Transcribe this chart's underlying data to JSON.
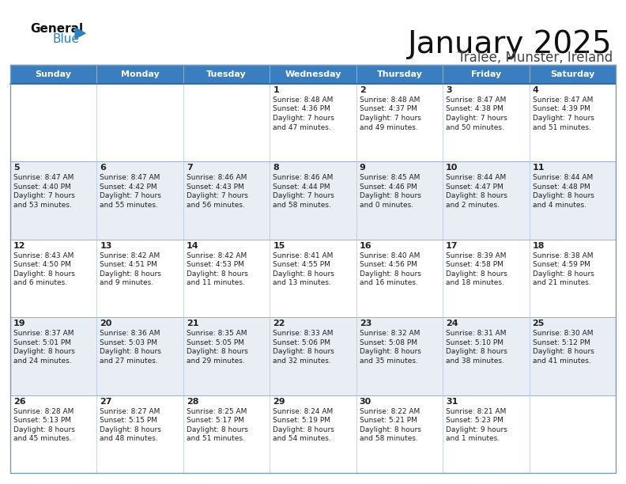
{
  "title": "January 2025",
  "subtitle": "Tralee, Munster, Ireland",
  "header_bg": "#3a7ebf",
  "header_text": "#FFFFFF",
  "day_names": [
    "Sunday",
    "Monday",
    "Tuesday",
    "Wednesday",
    "Thursday",
    "Friday",
    "Saturday"
  ],
  "alt_row_bg": "#E8EEF4",
  "normal_row_bg": "#FFFFFF",
  "cell_text_color": "#222222",
  "date_color": "#222222",
  "calendar": [
    [
      {
        "day": "",
        "sunrise": "",
        "sunset": "",
        "daylight_h": "",
        "daylight_m": ""
      },
      {
        "day": "",
        "sunrise": "",
        "sunset": "",
        "daylight_h": "",
        "daylight_m": ""
      },
      {
        "day": "",
        "sunrise": "",
        "sunset": "",
        "daylight_h": "",
        "daylight_m": ""
      },
      {
        "day": "1",
        "sunrise": "8:48 AM",
        "sunset": "4:36 PM",
        "daylight_h": "7",
        "daylight_m": "47"
      },
      {
        "day": "2",
        "sunrise": "8:48 AM",
        "sunset": "4:37 PM",
        "daylight_h": "7",
        "daylight_m": "49"
      },
      {
        "day": "3",
        "sunrise": "8:47 AM",
        "sunset": "4:38 PM",
        "daylight_h": "7",
        "daylight_m": "50"
      },
      {
        "day": "4",
        "sunrise": "8:47 AM",
        "sunset": "4:39 PM",
        "daylight_h": "7",
        "daylight_m": "51"
      }
    ],
    [
      {
        "day": "5",
        "sunrise": "8:47 AM",
        "sunset": "4:40 PM",
        "daylight_h": "7",
        "daylight_m": "53"
      },
      {
        "day": "6",
        "sunrise": "8:47 AM",
        "sunset": "4:42 PM",
        "daylight_h": "7",
        "daylight_m": "55"
      },
      {
        "day": "7",
        "sunrise": "8:46 AM",
        "sunset": "4:43 PM",
        "daylight_h": "7",
        "daylight_m": "56"
      },
      {
        "day": "8",
        "sunrise": "8:46 AM",
        "sunset": "4:44 PM",
        "daylight_h": "7",
        "daylight_m": "58"
      },
      {
        "day": "9",
        "sunrise": "8:45 AM",
        "sunset": "4:46 PM",
        "daylight_h": "8",
        "daylight_m": "0"
      },
      {
        "day": "10",
        "sunrise": "8:44 AM",
        "sunset": "4:47 PM",
        "daylight_h": "8",
        "daylight_m": "2"
      },
      {
        "day": "11",
        "sunrise": "8:44 AM",
        "sunset": "4:48 PM",
        "daylight_h": "8",
        "daylight_m": "4"
      }
    ],
    [
      {
        "day": "12",
        "sunrise": "8:43 AM",
        "sunset": "4:50 PM",
        "daylight_h": "8",
        "daylight_m": "6"
      },
      {
        "day": "13",
        "sunrise": "8:42 AM",
        "sunset": "4:51 PM",
        "daylight_h": "8",
        "daylight_m": "9"
      },
      {
        "day": "14",
        "sunrise": "8:42 AM",
        "sunset": "4:53 PM",
        "daylight_h": "8",
        "daylight_m": "11"
      },
      {
        "day": "15",
        "sunrise": "8:41 AM",
        "sunset": "4:55 PM",
        "daylight_h": "8",
        "daylight_m": "13"
      },
      {
        "day": "16",
        "sunrise": "8:40 AM",
        "sunset": "4:56 PM",
        "daylight_h": "8",
        "daylight_m": "16"
      },
      {
        "day": "17",
        "sunrise": "8:39 AM",
        "sunset": "4:58 PM",
        "daylight_h": "8",
        "daylight_m": "18"
      },
      {
        "day": "18",
        "sunrise": "8:38 AM",
        "sunset": "4:59 PM",
        "daylight_h": "8",
        "daylight_m": "21"
      }
    ],
    [
      {
        "day": "19",
        "sunrise": "8:37 AM",
        "sunset": "5:01 PM",
        "daylight_h": "8",
        "daylight_m": "24"
      },
      {
        "day": "20",
        "sunrise": "8:36 AM",
        "sunset": "5:03 PM",
        "daylight_h": "8",
        "daylight_m": "27"
      },
      {
        "day": "21",
        "sunrise": "8:35 AM",
        "sunset": "5:05 PM",
        "daylight_h": "8",
        "daylight_m": "29"
      },
      {
        "day": "22",
        "sunrise": "8:33 AM",
        "sunset": "5:06 PM",
        "daylight_h": "8",
        "daylight_m": "32"
      },
      {
        "day": "23",
        "sunrise": "8:32 AM",
        "sunset": "5:08 PM",
        "daylight_h": "8",
        "daylight_m": "35"
      },
      {
        "day": "24",
        "sunrise": "8:31 AM",
        "sunset": "5:10 PM",
        "daylight_h": "8",
        "daylight_m": "38"
      },
      {
        "day": "25",
        "sunrise": "8:30 AM",
        "sunset": "5:12 PM",
        "daylight_h": "8",
        "daylight_m": "41"
      }
    ],
    [
      {
        "day": "26",
        "sunrise": "8:28 AM",
        "sunset": "5:13 PM",
        "daylight_h": "8",
        "daylight_m": "45"
      },
      {
        "day": "27",
        "sunrise": "8:27 AM",
        "sunset": "5:15 PM",
        "daylight_h": "8",
        "daylight_m": "48"
      },
      {
        "day": "28",
        "sunrise": "8:25 AM",
        "sunset": "5:17 PM",
        "daylight_h": "8",
        "daylight_m": "51"
      },
      {
        "day": "29",
        "sunrise": "8:24 AM",
        "sunset": "5:19 PM",
        "daylight_h": "8",
        "daylight_m": "54"
      },
      {
        "day": "30",
        "sunrise": "8:22 AM",
        "sunset": "5:21 PM",
        "daylight_h": "8",
        "daylight_m": "58"
      },
      {
        "day": "31",
        "sunrise": "8:21 AM",
        "sunset": "5:23 PM",
        "daylight_h": "9",
        "daylight_m": "1"
      },
      {
        "day": "",
        "sunrise": "",
        "sunset": "",
        "daylight_h": "",
        "daylight_m": ""
      }
    ]
  ],
  "logo_general_color": "#111111",
  "logo_blue_color": "#2E7FC0",
  "logo_triangle_color": "#2E7FC0",
  "title_fontsize": 28,
  "subtitle_fontsize": 12,
  "header_fontsize": 8,
  "day_num_fontsize": 8,
  "cell_fontsize": 6.5
}
